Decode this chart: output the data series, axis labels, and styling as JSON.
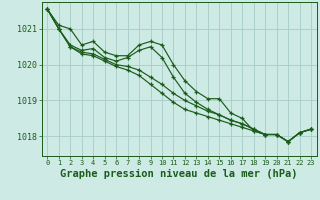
{
  "background_color": "#ceeae4",
  "grid_color": "#a8ccc8",
  "line_color": "#1a5c1a",
  "xlabel": "Graphe pression niveau de la mer (hPa)",
  "xlabel_fontsize": 7.5,
  "ylim": [
    1017.45,
    1021.75
  ],
  "xlim": [
    -0.5,
    23.5
  ],
  "yticks": [
    1018,
    1019,
    1020,
    1021
  ],
  "xticks": [
    0,
    1,
    2,
    3,
    4,
    5,
    6,
    7,
    8,
    9,
    10,
    11,
    12,
    13,
    14,
    15,
    16,
    17,
    18,
    19,
    20,
    21,
    22,
    23
  ],
  "series": [
    {
      "x": [
        0,
        1,
        2,
        3,
        4,
        5,
        6,
        7,
        8,
        9,
        10,
        11,
        12,
        13,
        14,
        15,
        16,
        17,
        18,
        19,
        20,
        21,
        22,
        23
      ],
      "y": [
        1021.55,
        1021.1,
        1021.0,
        1020.55,
        1020.65,
        1020.35,
        1020.25,
        1020.25,
        1020.55,
        1020.65,
        1020.55,
        1020.0,
        1019.55,
        1019.25,
        1019.05,
        1019.05,
        1018.65,
        1018.5,
        1018.15,
        1018.05,
        1018.05,
        1017.85,
        1018.1,
        1018.2
      ]
    },
    {
      "x": [
        0,
        1,
        2,
        3,
        4,
        5,
        6,
        7,
        8,
        9,
        10,
        11,
        12,
        13,
        14,
        15,
        16,
        17,
        18,
        19,
        20,
        21,
        22,
        23
      ],
      "y": [
        1021.55,
        1021.0,
        1020.55,
        1020.4,
        1020.45,
        1020.2,
        1020.1,
        1020.2,
        1020.4,
        1020.5,
        1020.2,
        1019.65,
        1019.2,
        1018.95,
        1018.75,
        1018.6,
        1018.45,
        1018.35,
        1018.2,
        1018.05,
        1018.05,
        1017.85,
        1018.1,
        1018.2
      ]
    },
    {
      "x": [
        0,
        1,
        2,
        3,
        4,
        5,
        6,
        7,
        8,
        9,
        10,
        11,
        12,
        13,
        14,
        15,
        16,
        17,
        18,
        19,
        20,
        21,
        22,
        23
      ],
      "y": [
        1021.55,
        1021.0,
        1020.5,
        1020.35,
        1020.3,
        1020.15,
        1020.0,
        1019.95,
        1019.85,
        1019.65,
        1019.45,
        1019.2,
        1019.0,
        1018.85,
        1018.7,
        1018.6,
        1018.45,
        1018.35,
        1018.2,
        1018.05,
        1018.05,
        1017.85,
        1018.1,
        1018.2
      ]
    },
    {
      "x": [
        0,
        1,
        2,
        3,
        4,
        5,
        6,
        7,
        8,
        9,
        10,
        11,
        12,
        13,
        14,
        15,
        16,
        17,
        18,
        19,
        20,
        21,
        22,
        23
      ],
      "y": [
        1021.55,
        1021.0,
        1020.5,
        1020.3,
        1020.25,
        1020.1,
        1019.95,
        1019.85,
        1019.7,
        1019.45,
        1019.2,
        1018.95,
        1018.75,
        1018.65,
        1018.55,
        1018.45,
        1018.35,
        1018.25,
        1018.15,
        1018.05,
        1018.05,
        1017.85,
        1018.1,
        1018.2
      ]
    }
  ]
}
